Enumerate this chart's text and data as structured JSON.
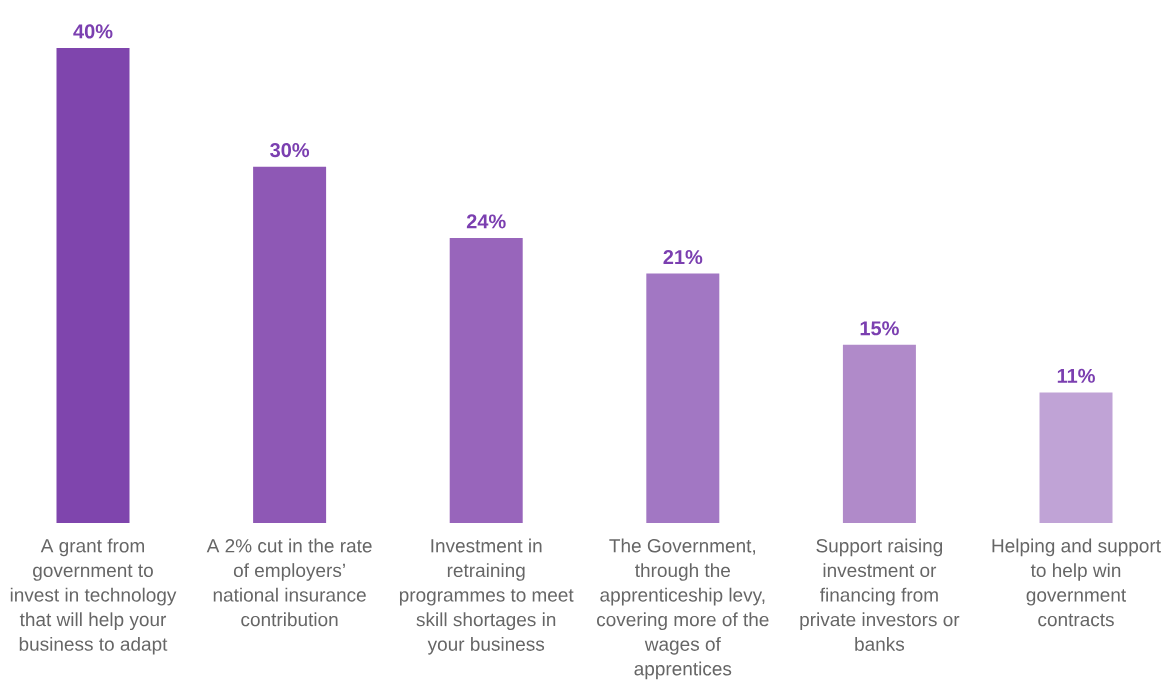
{
  "chart_data": {
    "type": "bar",
    "relative": false,
    "categories": [
      "A grant from government to invest in technology that will help your business to adapt",
      "A 2% cut in the rate of employers’ national insurance contribution",
      "Investment in retraining programmes to meet skill shortages in your business",
      "The Government, through the apprenticeship levy, covering more of the wages of apprentices",
      "Support raising investment or financing from private investors or banks",
      "Helping and support to help win government contracts"
    ],
    "values": [
      40,
      30,
      24,
      21,
      15,
      11
    ],
    "value_labels": [
      "40%",
      "30%",
      "24%",
      "21%",
      "15%",
      "11%"
    ],
    "colors": [
      "#7f45ad",
      "#8e58b5",
      "#9865bb",
      "#a277c3",
      "#b08ac9",
      "#c0a3d6"
    ]
  }
}
